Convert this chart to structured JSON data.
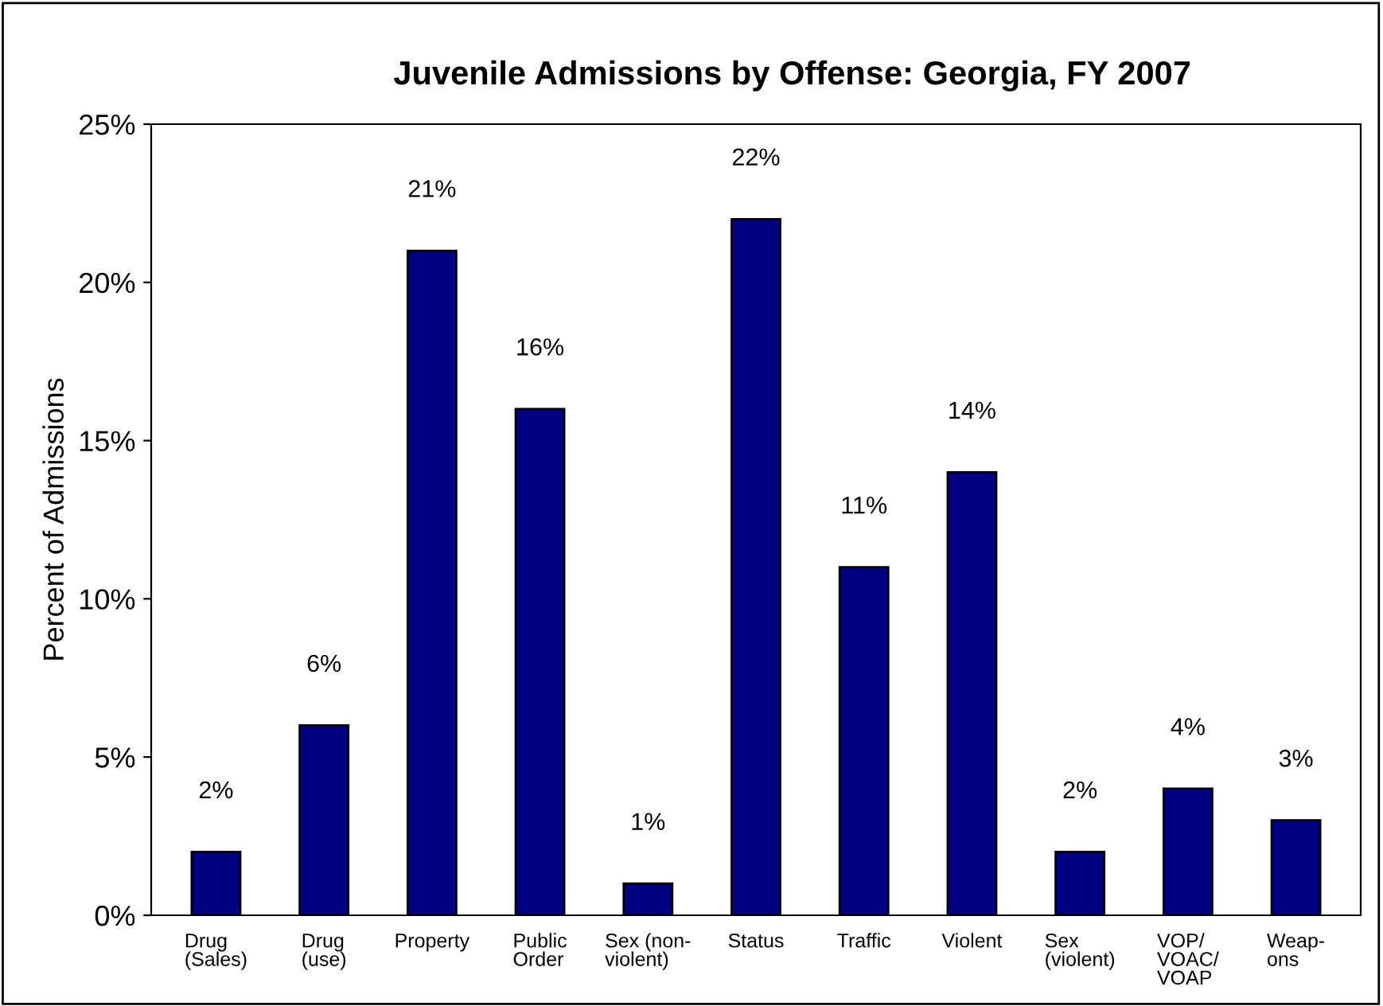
{
  "chart_data": {
    "type": "bar",
    "title": "Juvenile Admissions by Offense: Georgia, FY 2007",
    "ylabel": "Percent of Admissions",
    "categories": [
      "Drug\n(Sales)",
      "Drug\n(use)",
      "Property",
      "Public\nOrder",
      "Sex (non-\nviolent)",
      "Status",
      "Traffic",
      "Violent",
      "Sex\n(violent)",
      "VOP/\nVOAC/\nVOAP",
      "Weap-\nons"
    ],
    "values": [
      2,
      6,
      21,
      16,
      1,
      22,
      11,
      14,
      2,
      4,
      3
    ],
    "value_labels": [
      "2%",
      "6%",
      "21%",
      "16%",
      "1%",
      "22%",
      "11%",
      "14%",
      "2%",
      "4%",
      "3%"
    ],
    "color": "#000080",
    "ylim": [
      0,
      25
    ],
    "yticks": [
      {
        "value": 0,
        "label": "0%"
      },
      {
        "value": 5,
        "label": "5%"
      },
      {
        "value": 10,
        "label": "10%"
      },
      {
        "value": 15,
        "label": "15%"
      },
      {
        "value": 20,
        "label": "20%"
      },
      {
        "value": 25,
        "label": "25%"
      }
    ],
    "grid": false,
    "legend": false
  }
}
